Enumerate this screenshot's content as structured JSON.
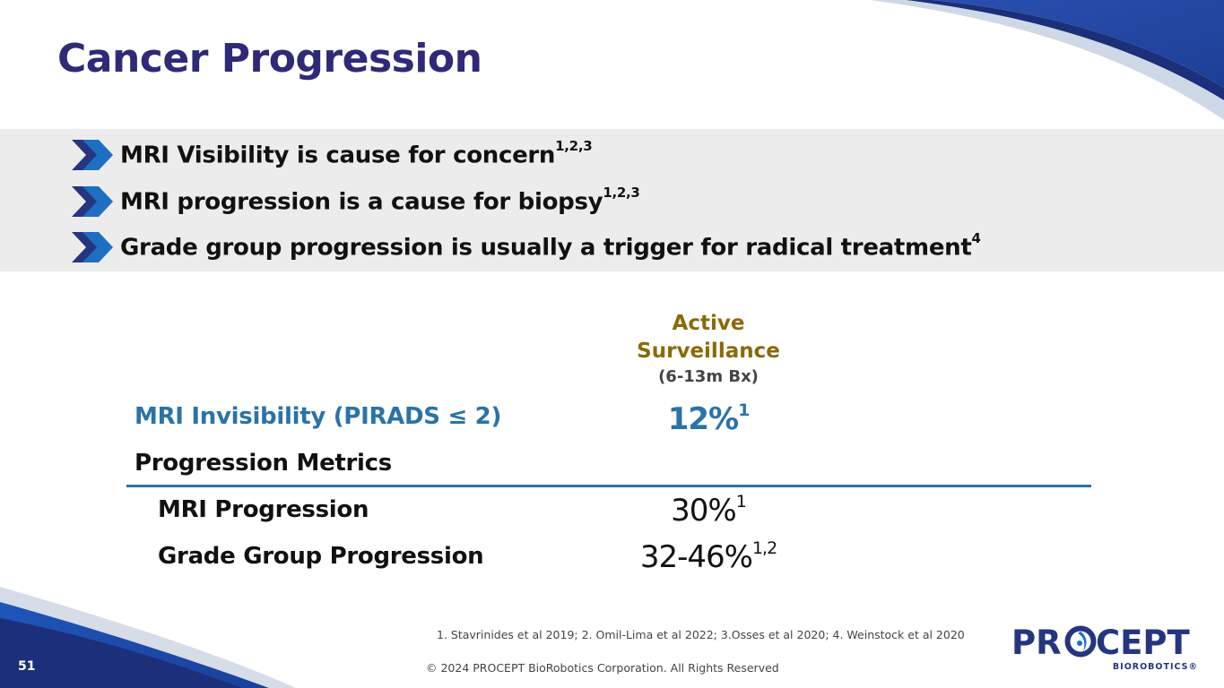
{
  "slide": {
    "title": "Cancer Progression",
    "page_number": "51"
  },
  "bullets": [
    {
      "text": "MRI Visibility is cause for concern",
      "sup": "1,2,3"
    },
    {
      "text": "MRI progression is a cause for biopsy",
      "sup": "1,2,3"
    },
    {
      "text": "Grade group progression is usually a trigger for radical treatment",
      "sup": "4"
    }
  ],
  "table": {
    "column_header": {
      "line1": "Active",
      "line2": "Surveillance",
      "sub": "(6-13m Bx)"
    },
    "rows": [
      {
        "label": "MRI Invisibility (PIRADS ≤ 2)",
        "value": "12%",
        "sup": "1"
      },
      {
        "label": "Progression Metrics",
        "value": "",
        "sup": ""
      },
      {
        "label": "MRI Progression",
        "value": "30%",
        "sup": "1"
      },
      {
        "label": "Grade Group Progression",
        "value": "32-46%",
        "sup": "1,2"
      }
    ]
  },
  "footer": {
    "references": "1. Stavrinides et al 2019; 2. Omil-Lima et al 2022; 3.Osses et al 2020; 4. Weinstock et al 2020",
    "copyright": "© 2024 PROCEPT BioRobotics Corporation. All Rights Reserved"
  },
  "logo": {
    "wordmark_before": "PR",
    "wordmark_after": "CEPT",
    "tagline": "BIOROBOTICS®"
  },
  "colors": {
    "title": "#2e2a78",
    "accent_blue": "#2a73a8",
    "column_gold": "#8a6a08",
    "band_gray": "#ececec",
    "brand_navy": "#26357f",
    "brand_blue": "#1e6fc2"
  }
}
